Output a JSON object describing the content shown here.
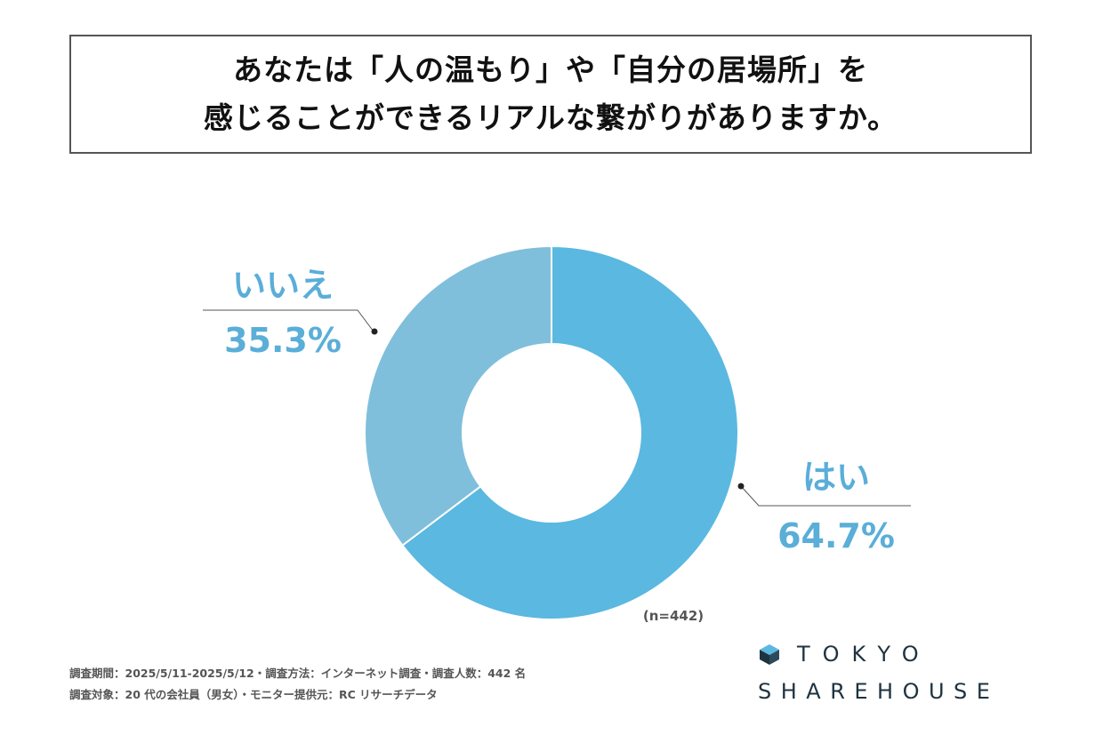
{
  "title": {
    "line1": "あなたは「人の温もり」や「自分の居場所」を",
    "line2": "感じることができるリアルな繋がりがありますか。"
  },
  "chart_data": {
    "type": "pie",
    "donut": true,
    "slices": [
      {
        "label": "はい",
        "value": 64.7,
        "value_text": "64.7%",
        "color": "#5bb8e0"
      },
      {
        "label": "いいえ",
        "value": 35.3,
        "value_text": "35.3%",
        "color": "#80bfdb"
      }
    ],
    "sample_note": "(n=442)",
    "label_color": "#5aaed8",
    "leader_color": "#555555"
  },
  "footer": {
    "line1": "調査期間：2025/5/11-2025/5/12・調査方法：インターネット調査・調査人数：442 名",
    "line2": "調査対象：20 代の会社員（男女）・モニター提供元：RC リサーチデータ"
  },
  "logo": {
    "line1": "TOKYO",
    "line2": "SHAREHOUSE",
    "icon": "house-cube-icon",
    "color": "#1e3340",
    "accent": "#5bb8e0"
  }
}
